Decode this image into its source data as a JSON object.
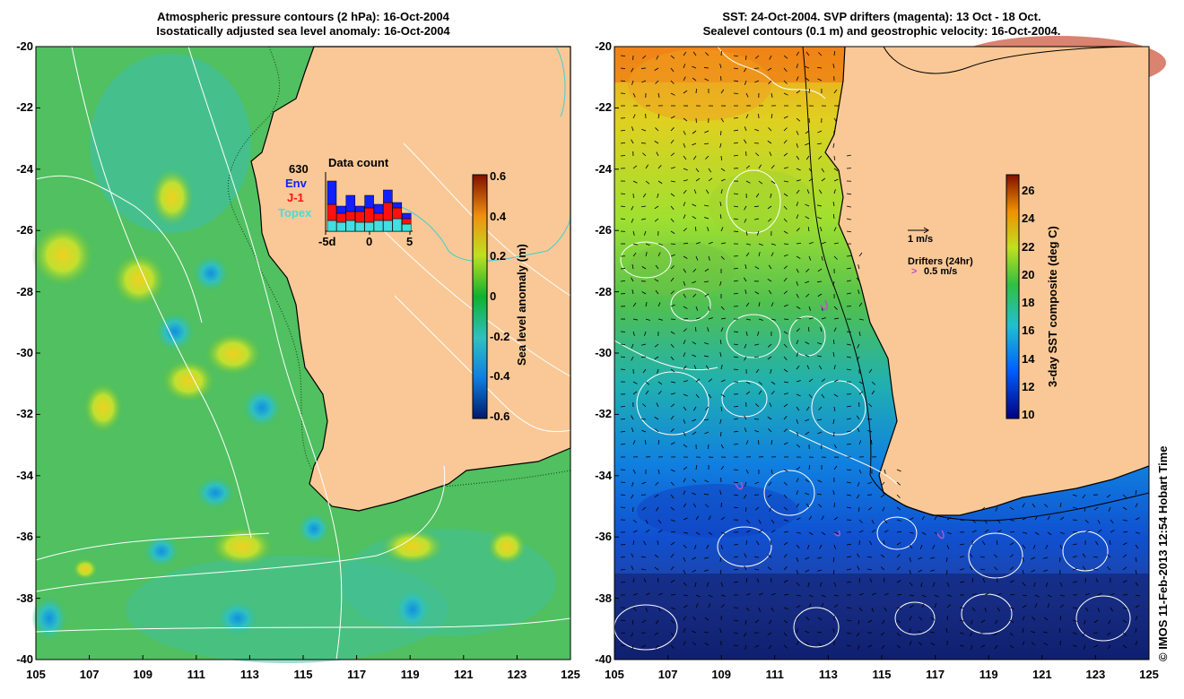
{
  "left_panel": {
    "title_line1": "Atmospheric pressure contours (2 hPa): 16-Oct-2004",
    "title_line2": "Isostatically adjusted sea level anomaly: 16-Oct-2004",
    "colorbar_label": "Sea level anomaly (m)",
    "colorbar_ticks": [
      "0.6",
      "0.4",
      "0.2",
      "0",
      "-0.2",
      "-0.4",
      "-0.6"
    ],
    "inset": {
      "title": "Data count",
      "count": "630",
      "legend": [
        "Env",
        "J-1",
        "Topex"
      ],
      "x_ticks": [
        "-5d",
        "0",
        "5"
      ]
    }
  },
  "right_panel": {
    "title_line1": "SST: 24-Oct-2004. SVP drifters (magenta): 13 Oct - 18 Oct.",
    "title_line2": "Sealevel contours (0.1 m) and geostrophic velocity: 16-Oct-2004.",
    "colorbar_label": "3-day SST composite (deg C)",
    "colorbar_ticks": [
      "26",
      "24",
      "22",
      "20",
      "18",
      "16",
      "14",
      "12",
      "10"
    ],
    "velocity_scale": "1 m/s",
    "drifters_label": "Drifters (24hr)",
    "drifters_scale": "0.5 m/s"
  },
  "y_ticks": [
    "-20",
    "-22",
    "-24",
    "-26",
    "-28",
    "-30",
    "-32",
    "-34",
    "-36",
    "-38",
    "-40"
  ],
  "x_ticks": [
    "105",
    "107",
    "109",
    "111",
    "113",
    "115",
    "117",
    "119",
    "121",
    "123",
    "125"
  ],
  "credit": "© IMOS 11-Feb-2013 12:54 Hobart Time",
  "colors": {
    "land": "#f9c896",
    "coast": "#000000",
    "contour": "#ffffff",
    "drifter": "#c050c0"
  }
}
